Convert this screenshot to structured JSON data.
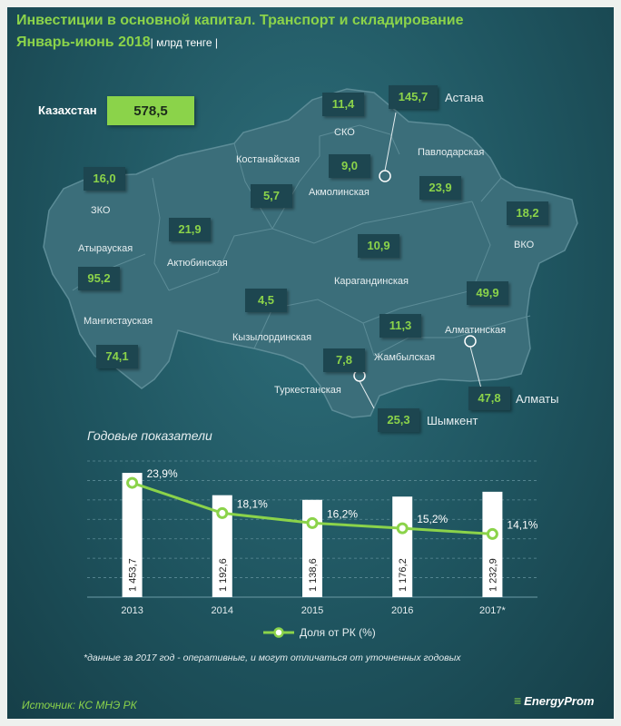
{
  "title": {
    "line1": "Инвестиции в основной капитал. Транспорт и складирование",
    "line2": "Январь-июнь 2018",
    "unit": "| млрд тенге |"
  },
  "kazakhstan": {
    "label": "Казахстан",
    "value": "578,5"
  },
  "regions": [
    {
      "id": "ko",
      "name": "СКО",
      "value": "11,4"
    },
    {
      "id": "ast",
      "name": "Астана",
      "value": "145,7"
    },
    {
      "id": "pav",
      "name": "Павлодарская",
      "value": "23,9"
    },
    {
      "id": "kost",
      "name": "Костанайская",
      "value": "5,7"
    },
    {
      "id": "akm",
      "name": "Акмолинская",
      "value": "9,0"
    },
    {
      "id": "zko",
      "name": "ЗКО",
      "value": "16,0"
    },
    {
      "id": "vko",
      "name": "ВКО",
      "value": "18,2"
    },
    {
      "id": "atyr",
      "name": "Атырауская",
      "value": "95,2"
    },
    {
      "id": "akt",
      "name": "Актюбинская",
      "value": "21,9"
    },
    {
      "id": "kar",
      "name": "Карагандинская",
      "value": "10,9"
    },
    {
      "id": "mang",
      "name": "Мангистауская",
      "value": "74,1"
    },
    {
      "id": "kyz",
      "name": "Кызылординская",
      "value": "4,5"
    },
    {
      "id": "alm_r",
      "name": "Алматинская",
      "value": "49,9"
    },
    {
      "id": "zham",
      "name": "Жамбылская",
      "value": "11,3"
    },
    {
      "id": "turk",
      "name": "Туркестанская",
      "value": "7,8"
    },
    {
      "id": "alm",
      "name": "Алматы",
      "value": "47,8"
    },
    {
      "id": "shym",
      "name": "Шымкент",
      "value": "25,3"
    }
  ],
  "annual": {
    "title": "Годовые показатели"
  },
  "chart_data": {
    "type": "bar",
    "categories": [
      "2013",
      "2014",
      "2015",
      "2016",
      "2017*"
    ],
    "bar_labels": [
      "1 453,7",
      "1 192,6",
      "1 138,6",
      "1 176,2",
      "1 232,9"
    ],
    "values": [
      1453.7,
      1192.6,
      1138.6,
      1176.2,
      1232.9
    ],
    "line_series": {
      "name": "Доля от РК (%)",
      "values": [
        23.9,
        18.1,
        16.2,
        15.2,
        14.1
      ],
      "labels": [
        "23,9%",
        "18,1%",
        "16,2%",
        "15,2%",
        "14,1%"
      ]
    },
    "grid": true,
    "colors": {
      "bar": "#ffffff",
      "line": "#8bd34a"
    }
  },
  "footnote": "*данные за 2017 год - оперативные, и могут отличаться от уточненных годовых",
  "source": "Источник: КС МНЭ РК",
  "brand": "EnergyProm",
  "colors": {
    "accent": "#8bd34a",
    "background": "#1f5560"
  }
}
